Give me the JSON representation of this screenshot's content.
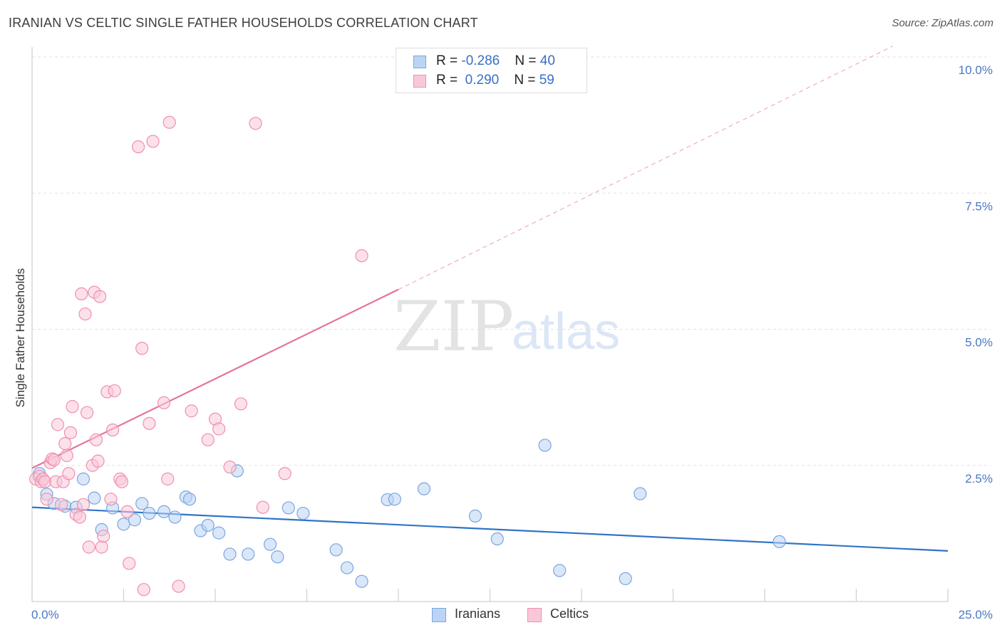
{
  "title": "IRANIAN VS CELTIC SINGLE FATHER HOUSEHOLDS CORRELATION CHART",
  "source": "Source: ZipAtlas.com",
  "watermark": {
    "zip": "ZIP",
    "atlas": "atlas"
  },
  "legend": {
    "rows": [
      {
        "r_label": "R = ",
        "r_value": "-0.286",
        "n_label": "N = ",
        "n_value": "40"
      },
      {
        "r_label": "R = ",
        "r_value": " 0.290",
        "n_label": "N = ",
        "n_value": "59"
      }
    ]
  },
  "colors": {
    "iranians_fill": "#bcd4f4",
    "iranians_stroke": "#7aa6e0",
    "iranians_line": "#2f74c8",
    "celtics_fill": "#f9c8d8",
    "celtics_stroke": "#ef8fb0",
    "celtics_line": "#e4729a"
  },
  "chart_data": {
    "type": "scatter",
    "title": "IRANIAN VS CELTIC SINGLE FATHER HOUSEHOLDS CORRELATION CHART",
    "xlabel": "",
    "ylabel": "Single Father Households",
    "xlim": [
      0,
      25
    ],
    "ylim": [
      0,
      10
    ],
    "x_tick_labels": [
      "0.0%",
      "25.0%"
    ],
    "y_ticks": [
      2.5,
      5.0,
      7.5,
      10.0
    ],
    "y_tick_labels": [
      "2.5%",
      "5.0%",
      "7.5%",
      "10.0%"
    ],
    "grid": true,
    "legend_position": "bottom",
    "series": [
      {
        "name": "Iranians",
        "r": -0.286,
        "n": 40,
        "trend": {
          "x": [
            0,
            25
          ],
          "y": [
            1.73,
            0.93
          ]
        },
        "points": [
          [
            0.2,
            2.35
          ],
          [
            0.4,
            1.97
          ],
          [
            0.6,
            1.8
          ],
          [
            0.9,
            1.75
          ],
          [
            1.2,
            1.73
          ],
          [
            1.4,
            2.25
          ],
          [
            1.7,
            1.9
          ],
          [
            1.9,
            1.32
          ],
          [
            2.2,
            1.72
          ],
          [
            2.5,
            1.42
          ],
          [
            2.8,
            1.5
          ],
          [
            3.0,
            1.8
          ],
          [
            3.2,
            1.62
          ],
          [
            3.6,
            1.65
          ],
          [
            3.9,
            1.55
          ],
          [
            4.2,
            1.92
          ],
          [
            4.3,
            1.88
          ],
          [
            4.6,
            1.3
          ],
          [
            4.8,
            1.4
          ],
          [
            5.1,
            1.26
          ],
          [
            5.4,
            0.87
          ],
          [
            5.6,
            2.4
          ],
          [
            5.9,
            0.87
          ],
          [
            6.5,
            1.05
          ],
          [
            6.7,
            0.82
          ],
          [
            7.0,
            1.72
          ],
          [
            7.4,
            1.62
          ],
          [
            8.3,
            0.95
          ],
          [
            8.6,
            0.62
          ],
          [
            9.0,
            0.37
          ],
          [
            9.7,
            1.87
          ],
          [
            9.9,
            1.88
          ],
          [
            10.7,
            2.07
          ],
          [
            12.1,
            1.57
          ],
          [
            12.7,
            1.15
          ],
          [
            14.0,
            2.87
          ],
          [
            14.4,
            0.57
          ],
          [
            16.2,
            0.42
          ],
          [
            16.6,
            1.98
          ],
          [
            20.4,
            1.1
          ]
        ]
      },
      {
        "name": "Celtics",
        "r": 0.29,
        "n": 59,
        "trend": {
          "x": [
            0,
            10
          ],
          "y": [
            2.45,
            5.73
          ]
        },
        "trend_extension": {
          "x": [
            10,
            23.5
          ],
          "y": [
            5.73,
            10.2
          ]
        },
        "points": [
          [
            0.1,
            2.25
          ],
          [
            0.2,
            2.3
          ],
          [
            0.25,
            2.2
          ],
          [
            0.3,
            2.25
          ],
          [
            0.35,
            2.2
          ],
          [
            0.4,
            1.88
          ],
          [
            0.5,
            2.55
          ],
          [
            0.55,
            2.62
          ],
          [
            0.6,
            2.6
          ],
          [
            0.65,
            2.2
          ],
          [
            0.7,
            3.25
          ],
          [
            0.8,
            1.78
          ],
          [
            0.85,
            2.2
          ],
          [
            0.9,
            2.9
          ],
          [
            0.95,
            2.68
          ],
          [
            1.0,
            2.35
          ],
          [
            1.05,
            3.1
          ],
          [
            1.1,
            3.58
          ],
          [
            1.2,
            1.6
          ],
          [
            1.3,
            1.55
          ],
          [
            1.35,
            5.65
          ],
          [
            1.4,
            1.78
          ],
          [
            1.45,
            5.28
          ],
          [
            1.5,
            3.47
          ],
          [
            1.55,
            1.0
          ],
          [
            1.65,
            2.5
          ],
          [
            1.7,
            5.68
          ],
          [
            1.75,
            2.97
          ],
          [
            1.8,
            2.58
          ],
          [
            1.85,
            5.6
          ],
          [
            1.9,
            1.0
          ],
          [
            1.95,
            1.2
          ],
          [
            2.05,
            3.85
          ],
          [
            2.15,
            1.88
          ],
          [
            2.2,
            3.15
          ],
          [
            2.25,
            3.87
          ],
          [
            2.4,
            2.25
          ],
          [
            2.45,
            2.2
          ],
          [
            2.6,
            1.65
          ],
          [
            2.65,
            0.7
          ],
          [
            2.9,
            8.35
          ],
          [
            3.0,
            4.65
          ],
          [
            3.05,
            0.22
          ],
          [
            3.2,
            3.27
          ],
          [
            3.3,
            8.45
          ],
          [
            3.6,
            3.65
          ],
          [
            3.7,
            2.25
          ],
          [
            3.75,
            8.8
          ],
          [
            4.0,
            0.28
          ],
          [
            4.35,
            3.5
          ],
          [
            4.8,
            2.97
          ],
          [
            5.0,
            3.35
          ],
          [
            5.1,
            3.17
          ],
          [
            5.4,
            2.47
          ],
          [
            5.7,
            3.63
          ],
          [
            6.1,
            8.78
          ],
          [
            6.3,
            1.73
          ],
          [
            6.9,
            2.35
          ],
          [
            9.0,
            6.35
          ]
        ]
      }
    ]
  }
}
